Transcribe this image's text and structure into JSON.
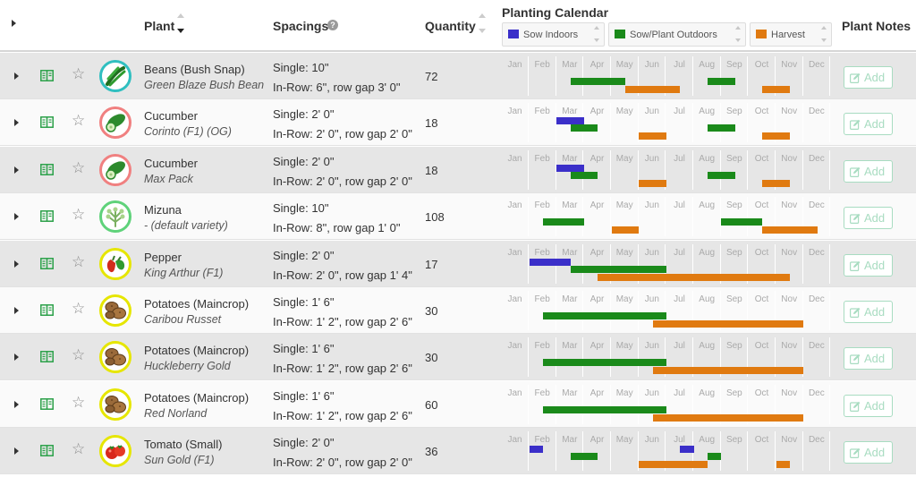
{
  "header": {
    "plant_label": "Plant",
    "spacings_label": "Spacings",
    "help_glyph": "?",
    "quantity_label": "Quantity",
    "calendar_label": "Planting Calendar",
    "notes_label": "Plant Notes",
    "legend": [
      {
        "label": "Sow Indoors",
        "color": "#3b2fc9"
      },
      {
        "label": "Sow/Plant Outdoors",
        "color": "#1a8a1a"
      },
      {
        "label": "Harvest",
        "color": "#e07a10"
      }
    ]
  },
  "months": [
    "Jan",
    "Feb",
    "Mar",
    "Apr",
    "May",
    "Jun",
    "Jul",
    "Aug",
    "Sep",
    "Oct",
    "Nov",
    "Dec"
  ],
  "add_label": "Add",
  "colors": {
    "indoors": "#3b2fc9",
    "outdoors": "#1a8a1a",
    "harvest": "#e07a10",
    "add_button": "#a8dcc1"
  },
  "rows": [
    {
      "name": "Beans (Bush Snap)",
      "variety": "Green Blaze Bush Bean",
      "single": "Single: 10\"",
      "inrow": "In-Row: 6\", row gap 3' 0\"",
      "quantity": "72",
      "icon": "beans-icon",
      "ring": "#30bfc0",
      "calendar": {
        "indoors": [],
        "outdoors": [
          [
            2.5,
            4.5
          ],
          [
            7.5,
            8.5
          ]
        ],
        "harvest": [
          [
            4.5,
            6.5
          ],
          [
            9.5,
            10.5
          ]
        ]
      }
    },
    {
      "name": "Cucumber",
      "variety": "Corinto (F1) (OG)",
      "single": "Single: 2' 0\"",
      "inrow": "In-Row: 2' 0\", row gap 2' 0\"",
      "quantity": "18",
      "icon": "cucumber-icon",
      "ring": "#f08080",
      "calendar": {
        "indoors": [
          [
            2,
            3
          ]
        ],
        "outdoors": [
          [
            2.5,
            3.5
          ],
          [
            7.5,
            8.5
          ]
        ],
        "harvest": [
          [
            5,
            6
          ],
          [
            9.5,
            10.5
          ]
        ]
      }
    },
    {
      "name": "Cucumber",
      "variety": "Max Pack",
      "single": "Single: 2' 0\"",
      "inrow": "In-Row: 2' 0\", row gap 2' 0\"",
      "quantity": "18",
      "icon": "cucumber-icon",
      "ring": "#f08080",
      "calendar": {
        "indoors": [
          [
            2,
            3
          ]
        ],
        "outdoors": [
          [
            2.5,
            3.5
          ],
          [
            7.5,
            8.5
          ]
        ],
        "harvest": [
          [
            5,
            6
          ],
          [
            9.5,
            10.5
          ]
        ]
      }
    },
    {
      "name": "Mizuna",
      "variety": "- (default variety)",
      "single": "Single: 10\"",
      "inrow": "In-Row: 8\", row gap 1' 0\"",
      "quantity": "108",
      "icon": "mizuna-icon",
      "ring": "#5fd27a",
      "calendar": {
        "indoors": [],
        "outdoors": [
          [
            1.5,
            3
          ],
          [
            8,
            9.5
          ]
        ],
        "harvest": [
          [
            4,
            5
          ],
          [
            9.5,
            11.5
          ]
        ]
      }
    },
    {
      "name": "Pepper",
      "variety": "King Arthur (F1)",
      "single": "Single: 2' 0\"",
      "inrow": "In-Row: 2' 0\", row gap 1' 4\"",
      "quantity": "17",
      "icon": "pepper-icon",
      "ring": "#e6e600",
      "calendar": {
        "indoors": [
          [
            1,
            2.5
          ]
        ],
        "outdoors": [
          [
            2.5,
            6
          ]
        ],
        "harvest": [
          [
            3.5,
            10.5
          ]
        ]
      }
    },
    {
      "name": "Potatoes (Maincrop)",
      "variety": "Caribou Russet",
      "single": "Single: 1' 6\"",
      "inrow": "In-Row: 1' 2\", row gap 2' 6\"",
      "quantity": "30",
      "icon": "potato-icon",
      "ring": "#e6e600",
      "calendar": {
        "indoors": [],
        "outdoors": [
          [
            1.5,
            6
          ]
        ],
        "harvest": [
          [
            5.5,
            11
          ]
        ]
      }
    },
    {
      "name": "Potatoes (Maincrop)",
      "variety": "Huckleberry Gold",
      "single": "Single: 1' 6\"",
      "inrow": "In-Row: 1' 2\", row gap 2' 6\"",
      "quantity": "30",
      "icon": "potato-icon",
      "ring": "#e6e600",
      "calendar": {
        "indoors": [],
        "outdoors": [
          [
            1.5,
            6
          ]
        ],
        "harvest": [
          [
            5.5,
            11
          ]
        ]
      }
    },
    {
      "name": "Potatoes (Maincrop)",
      "variety": "Red Norland",
      "single": "Single: 1' 6\"",
      "inrow": "In-Row: 1' 2\", row gap 2' 6\"",
      "quantity": "60",
      "icon": "potato-icon",
      "ring": "#e6e600",
      "calendar": {
        "indoors": [],
        "outdoors": [
          [
            1.5,
            6
          ]
        ],
        "harvest": [
          [
            5.5,
            11
          ]
        ]
      }
    },
    {
      "name": "Tomato (Small)",
      "variety": "Sun Gold (F1)",
      "single": "Single: 2' 0\"",
      "inrow": "In-Row: 2' 0\", row gap 2' 0\"",
      "quantity": "36",
      "icon": "tomato-icon",
      "ring": "#e6e600",
      "calendar": {
        "indoors": [
          [
            1,
            1.5
          ],
          [
            6.5,
            7
          ]
        ],
        "outdoors": [
          [
            2.5,
            3.5
          ],
          [
            7.5,
            8
          ]
        ],
        "harvest": [
          [
            5,
            7.5
          ],
          [
            10,
            10.5
          ]
        ]
      }
    }
  ]
}
